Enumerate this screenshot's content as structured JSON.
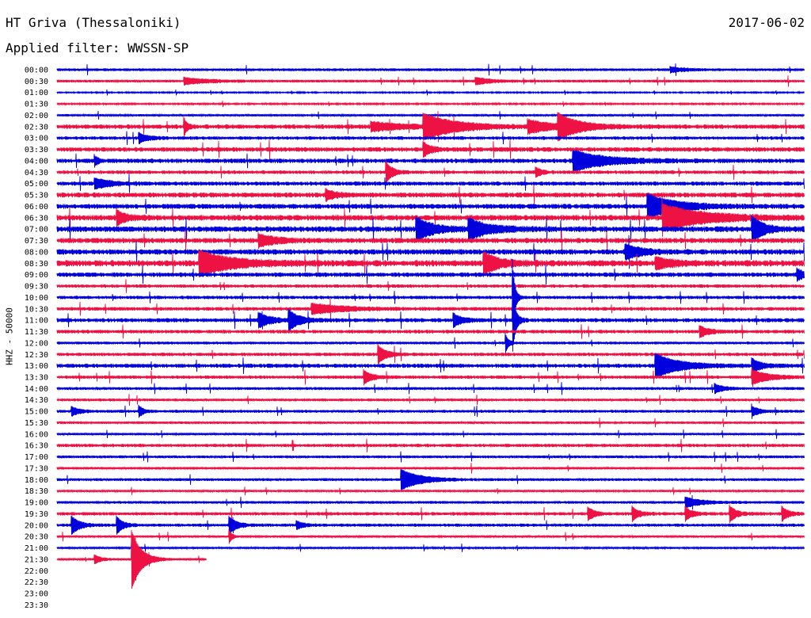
{
  "header": {
    "title": "HT Griva (Thessaloniki)",
    "date": "2017-06-02",
    "filter": "Applied filter: WWSSN-SP"
  },
  "chart_data": {
    "type": "line",
    "ylabel": "HHZ - 50000",
    "row_labels": [
      "00:00",
      "00:30",
      "01:00",
      "01:30",
      "02:00",
      "02:30",
      "03:00",
      "03:30",
      "04:00",
      "04:30",
      "05:00",
      "05:30",
      "06:00",
      "06:30",
      "07:00",
      "07:30",
      "08:00",
      "08:30",
      "09:00",
      "09:30",
      "10:00",
      "10:30",
      "11:00",
      "11:30",
      "12:00",
      "12:30",
      "13:00",
      "13:30",
      "14:00",
      "14:30",
      "15:00",
      "15:30",
      "16:00",
      "16:30",
      "17:00",
      "17:30",
      "18:00",
      "18:30",
      "19:00",
      "19:30",
      "20:00",
      "20:30",
      "21:00",
      "21:30",
      "22:00",
      "22:30",
      "23:00",
      "23:30"
    ],
    "recorded_rows": 44,
    "last_row_fraction": 0.2,
    "colors": {
      "even": "#0000dd",
      "odd": "#ee1144"
    },
    "noise_levels": [
      1.2,
      1.2,
      0.6,
      0.7,
      1.0,
      2.0,
      1.5,
      2.0,
      2.0,
      1.6,
      1.8,
      2.2,
      2.2,
      2.5,
      2.5,
      2.3,
      2.4,
      2.8,
      2.0,
      1.5,
      1.5,
      1.6,
      1.8,
      1.6,
      1.2,
      1.5,
      1.8,
      1.5,
      1.3,
      1.2,
      1.3,
      1.1,
      1.0,
      1.5,
      1.2,
      1.1,
      1.2,
      0.9,
      1.2,
      1.5,
      1.4,
      1.0,
      0.9,
      1.0
    ],
    "events": [
      {
        "row": 0,
        "x": 0.82,
        "amp": 3,
        "dur": 0.02
      },
      {
        "row": 1,
        "x": 0.17,
        "amp": 4,
        "dur": 0.03
      },
      {
        "row": 1,
        "x": 0.56,
        "amp": 4,
        "dur": 0.02
      },
      {
        "row": 5,
        "x": 0.17,
        "amp": 10,
        "dur": 0.004
      },
      {
        "row": 5,
        "x": 0.42,
        "amp": 5,
        "dur": 0.04
      },
      {
        "row": 5,
        "x": 0.49,
        "amp": 14,
        "dur": 0.04
      },
      {
        "row": 5,
        "x": 0.63,
        "amp": 7,
        "dur": 0.03
      },
      {
        "row": 5,
        "x": 0.67,
        "amp": 14,
        "dur": 0.025
      },
      {
        "row": 6,
        "x": 0.11,
        "amp": 6,
        "dur": 0.01
      },
      {
        "row": 7,
        "x": 0.49,
        "amp": 8,
        "dur": 0.01
      },
      {
        "row": 8,
        "x": 0.05,
        "amp": 6,
        "dur": 0.005
      },
      {
        "row": 8,
        "x": 0.69,
        "amp": 12,
        "dur": 0.04
      },
      {
        "row": 9,
        "x": 0.44,
        "amp": 12,
        "dur": 0.008
      },
      {
        "row": 9,
        "x": 0.64,
        "amp": 6,
        "dur": 0.006
      },
      {
        "row": 10,
        "x": 0.05,
        "amp": 6,
        "dur": 0.02
      },
      {
        "row": 11,
        "x": 0.36,
        "amp": 6,
        "dur": 0.012
      },
      {
        "row": 12,
        "x": 0.79,
        "amp": 14,
        "dur": 0.035
      },
      {
        "row": 13,
        "x": 0.08,
        "amp": 8,
        "dur": 0.012
      },
      {
        "row": 13,
        "x": 0.81,
        "amp": 15,
        "dur": 0.05
      },
      {
        "row": 14,
        "x": 0.48,
        "amp": 14,
        "dur": 0.02
      },
      {
        "row": 14,
        "x": 0.55,
        "amp": 12,
        "dur": 0.025
      },
      {
        "row": 14,
        "x": 0.93,
        "amp": 14,
        "dur": 0.015
      },
      {
        "row": 15,
        "x": 0.27,
        "amp": 7,
        "dur": 0.02
      },
      {
        "row": 16,
        "x": 0.76,
        "amp": 8,
        "dur": 0.02
      },
      {
        "row": 17,
        "x": 0.19,
        "amp": 14,
        "dur": 0.04
      },
      {
        "row": 17,
        "x": 0.57,
        "amp": 12,
        "dur": 0.02
      },
      {
        "row": 17,
        "x": 0.8,
        "amp": 6,
        "dur": 0.02
      },
      {
        "row": 18,
        "x": 0.99,
        "amp": 6,
        "dur": 0.01
      },
      {
        "row": 20,
        "x": 0.61,
        "amp": 35,
        "dur": 0.003
      },
      {
        "row": 21,
        "x": 0.34,
        "amp": 6,
        "dur": 0.04
      },
      {
        "row": 22,
        "x": 0.27,
        "amp": 8,
        "dur": 0.015
      },
      {
        "row": 22,
        "x": 0.31,
        "amp": 12,
        "dur": 0.012
      },
      {
        "row": 22,
        "x": 0.53,
        "amp": 8,
        "dur": 0.01
      },
      {
        "row": 22,
        "x": 0.61,
        "amp": 30,
        "dur": 0.004
      },
      {
        "row": 23,
        "x": 0.86,
        "amp": 6,
        "dur": 0.012
      },
      {
        "row": 24,
        "x": 0.6,
        "amp": 10,
        "dur": 0.004
      },
      {
        "row": 25,
        "x": 0.43,
        "amp": 10,
        "dur": 0.01
      },
      {
        "row": 26,
        "x": 0.8,
        "amp": 14,
        "dur": 0.03
      },
      {
        "row": 26,
        "x": 0.93,
        "amp": 8,
        "dur": 0.01
      },
      {
        "row": 27,
        "x": 0.41,
        "amp": 8,
        "dur": 0.01
      },
      {
        "row": 27,
        "x": 0.93,
        "amp": 8,
        "dur": 0.02
      },
      {
        "row": 28,
        "x": 0.88,
        "amp": 5,
        "dur": 0.01
      },
      {
        "row": 30,
        "x": 0.02,
        "amp": 5,
        "dur": 0.01
      },
      {
        "row": 30,
        "x": 0.11,
        "amp": 6,
        "dur": 0.006
      },
      {
        "row": 30,
        "x": 0.93,
        "amp": 5,
        "dur": 0.01
      },
      {
        "row": 36,
        "x": 0.46,
        "amp": 12,
        "dur": 0.025
      },
      {
        "row": 38,
        "x": 0.84,
        "amp": 6,
        "dur": 0.02
      },
      {
        "row": 39,
        "x": 0.71,
        "amp": 8,
        "dur": 0.008
      },
      {
        "row": 39,
        "x": 0.77,
        "amp": 8,
        "dur": 0.008
      },
      {
        "row": 39,
        "x": 0.84,
        "amp": 8,
        "dur": 0.008
      },
      {
        "row": 39,
        "x": 0.9,
        "amp": 9,
        "dur": 0.008
      },
      {
        "row": 39,
        "x": 0.97,
        "amp": 8,
        "dur": 0.008
      },
      {
        "row": 40,
        "x": 0.02,
        "amp": 10,
        "dur": 0.01
      },
      {
        "row": 40,
        "x": 0.08,
        "amp": 10,
        "dur": 0.008
      },
      {
        "row": 40,
        "x": 0.23,
        "amp": 10,
        "dur": 0.01
      },
      {
        "row": 40,
        "x": 0.32,
        "amp": 5,
        "dur": 0.008
      },
      {
        "row": 41,
        "x": 0.23,
        "amp": 8,
        "dur": 0.004
      },
      {
        "row": 42,
        "x": 0.1,
        "amp": 6,
        "dur": 0.004
      },
      {
        "row": 43,
        "x": 0.05,
        "amp": 5,
        "dur": 0.008
      },
      {
        "row": 43,
        "x": 0.1,
        "amp": 35,
        "dur": 0.012
      }
    ]
  }
}
